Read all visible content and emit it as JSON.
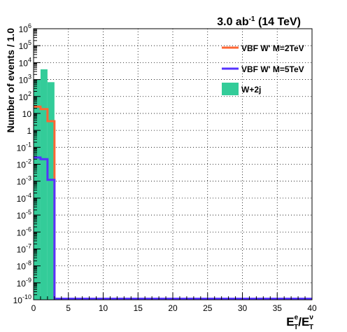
{
  "chart_data": {
    "type": "histogram",
    "title": "3.0 ab⁻¹ (14 TeV)",
    "title_parts": {
      "pre": "3.0 ab",
      "sup": "-1",
      "post": " (14 TeV)"
    },
    "ylabel": "Number of events / 1.0",
    "xlabel_parts": {
      "base1": "E",
      "sup1": "e",
      "sub1": "T",
      "sep": "/",
      "base2": "E",
      "sup2": "ν",
      "sub2": "T"
    },
    "xlim": [
      0,
      40
    ],
    "ylim": [
      1e-10,
      1000000.0
    ],
    "yscale": "log",
    "grid": true,
    "legend_position": "top-right",
    "x_ticks": [
      "0",
      "5",
      "10",
      "15",
      "20",
      "25",
      "30",
      "35",
      "40"
    ],
    "y_tick_labels": [
      {
        "base": "10",
        "exp": "-10"
      },
      {
        "base": "10",
        "exp": "-9"
      },
      {
        "base": "10",
        "exp": "-8"
      },
      {
        "base": "10",
        "exp": "-7"
      },
      {
        "base": "10",
        "exp": "-6"
      },
      {
        "base": "10",
        "exp": "-5"
      },
      {
        "base": "10",
        "exp": "-4"
      },
      {
        "base": "10",
        "exp": "-3"
      },
      {
        "base": "10",
        "exp": "-2"
      },
      {
        "base": "10",
        "exp": "-1"
      },
      {
        "base": "1",
        "exp": ""
      },
      {
        "base": "10",
        "exp": ""
      },
      {
        "base": "10",
        "exp": "2"
      },
      {
        "base": "10",
        "exp": "3"
      },
      {
        "base": "10",
        "exp": "4"
      },
      {
        "base": "10",
        "exp": "5"
      },
      {
        "base": "10",
        "exp": "6"
      }
    ],
    "bin_edges": [
      0,
      1,
      2,
      3,
      40
    ],
    "series": [
      {
        "name": "W+2j",
        "style": "fill",
        "color": "#33cc99",
        "values": [
          1000,
          4000,
          700,
          1e-10
        ]
      },
      {
        "name": "VBF W' M=2TeV",
        "style": "step",
        "color": "#ff6633",
        "values": [
          25,
          18,
          3.5,
          1e-10
        ]
      },
      {
        "name": "VBF W' M=5TeV",
        "style": "step",
        "color": "#5533ff",
        "values": [
          0.025,
          0.02,
          0.0012,
          1e-10
        ]
      }
    ],
    "legend_order": [
      "VBF W' M=2TeV",
      "VBF W' M=5TeV",
      "W+2j"
    ]
  }
}
